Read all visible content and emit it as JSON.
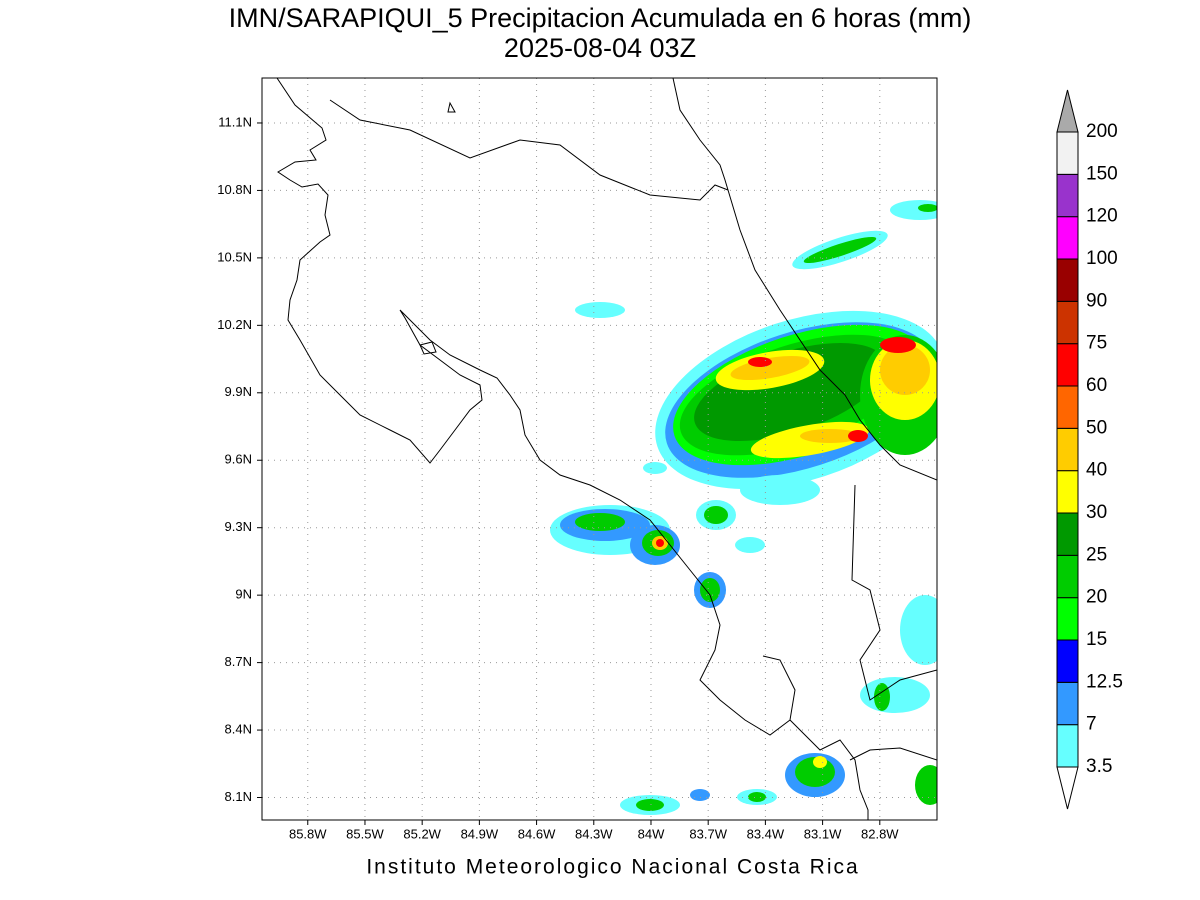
{
  "header": {
    "title": "IMN/SARAPIQUI_5 Precipitacion Acumulada en 6 horas (mm)",
    "subtitle": "2025-08-04 03Z"
  },
  "map": {
    "lonlim": [
      -86.04,
      -82.5
    ],
    "latlim": [
      8.0,
      11.3
    ],
    "grid": true,
    "lonticks": [
      {
        "value": -85.8,
        "label": "85.8W"
      },
      {
        "value": -85.5,
        "label": "85.5W"
      },
      {
        "value": -85.2,
        "label": "85.2W"
      },
      {
        "value": -84.9,
        "label": "84.9W"
      },
      {
        "value": -84.6,
        "label": "84.6W"
      },
      {
        "value": -84.3,
        "label": "84.3W"
      },
      {
        "value": -84,
        "label": "84W"
      },
      {
        "value": -83.7,
        "label": "83.7W"
      },
      {
        "value": -83.4,
        "label": "83.4W"
      },
      {
        "value": -83.1,
        "label": "83.1W"
      },
      {
        "value": -82.8,
        "label": "82.8W"
      }
    ],
    "latticks": [
      {
        "value": 8.1,
        "label": "8.1N"
      },
      {
        "value": 8.4,
        "label": "8.4N"
      },
      {
        "value": 8.7,
        "label": "8.7N"
      },
      {
        "value": 9,
        "label": "9N"
      },
      {
        "value": 9.3,
        "label": "9.3N"
      },
      {
        "value": 9.6,
        "label": "9.6N"
      },
      {
        "value": 9.9,
        "label": "9.9N"
      },
      {
        "value": 10.2,
        "label": "10.2N"
      },
      {
        "value": 10.5,
        "label": "10.5N"
      },
      {
        "value": 10.8,
        "label": "10.8N"
      },
      {
        "value": 11.1,
        "label": "11.1N"
      }
    ]
  },
  "colorbar": {
    "levels": [
      3.5,
      7,
      12.5,
      15,
      20,
      25,
      30,
      40,
      50,
      60,
      75,
      90,
      100,
      120,
      150,
      200
    ],
    "colors": [
      "#ffffff",
      "#66ffff",
      "#3399ff",
      "#0000ff",
      "#00ff00",
      "#00cc00",
      "#009900",
      "#ffff00",
      "#ffcc00",
      "#ff6600",
      "#ff0000",
      "#cc3300",
      "#990000",
      "#ff00ff",
      "#9933cc",
      "#f2f2f2",
      "#aaaaaa"
    ]
  },
  "footer": "Instituto Meteorologico Nacional Costa Rica"
}
